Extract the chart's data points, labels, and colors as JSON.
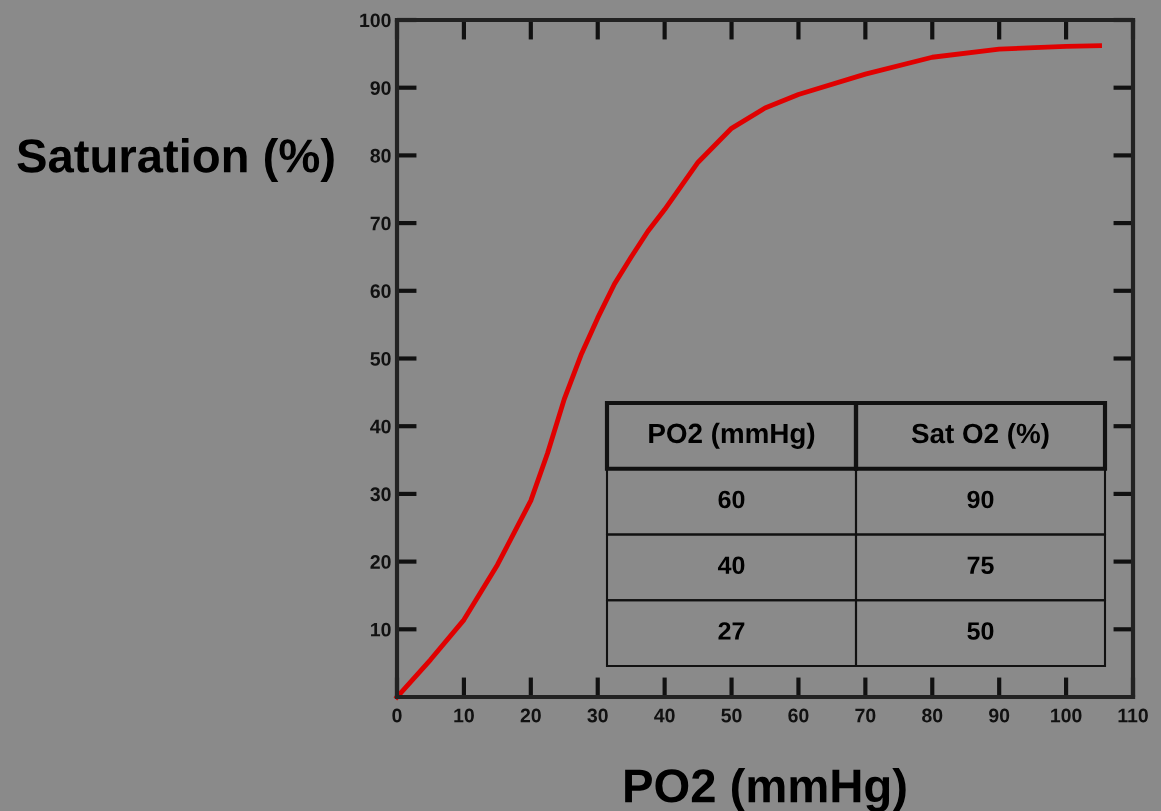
{
  "chart_data": {
    "type": "line",
    "xlabel": "PO2 (mmHg)",
    "ylabel": "Saturation (%)",
    "x": [
      0,
      5,
      10,
      15,
      20,
      22.5,
      25,
      27.5,
      30,
      32.5,
      35,
      37.5,
      40,
      42.5,
      45,
      47.5,
      50,
      55,
      60,
      70,
      80,
      90,
      100,
      105
    ],
    "series": [
      {
        "color": "#e00000",
        "values": [
          0,
          5.5,
          11.4,
          19.5,
          29,
          36,
          44,
          50.5,
          56,
          61,
          65,
          68.8,
          72,
          75.5,
          79,
          81.5,
          84,
          87,
          89,
          92,
          94.5,
          95.7,
          96.1,
          96.2
        ]
      }
    ],
    "xlim": [
      0,
      110
    ],
    "xticks": [
      0,
      10,
      20,
      30,
      40,
      50,
      60,
      70,
      80,
      90,
      100,
      110
    ],
    "ylim": [
      0,
      100
    ],
    "yticks": [
      10,
      20,
      30,
      40,
      50,
      60,
      70,
      80,
      90,
      100
    ],
    "grid": false,
    "legend": false,
    "marker": "none",
    "line_style": "solid",
    "annotations": [
      "PO2 (mmHg)",
      "Sat O2 (%)",
      "60",
      "90",
      "40",
      "75",
      "27",
      "50"
    ]
  }
}
